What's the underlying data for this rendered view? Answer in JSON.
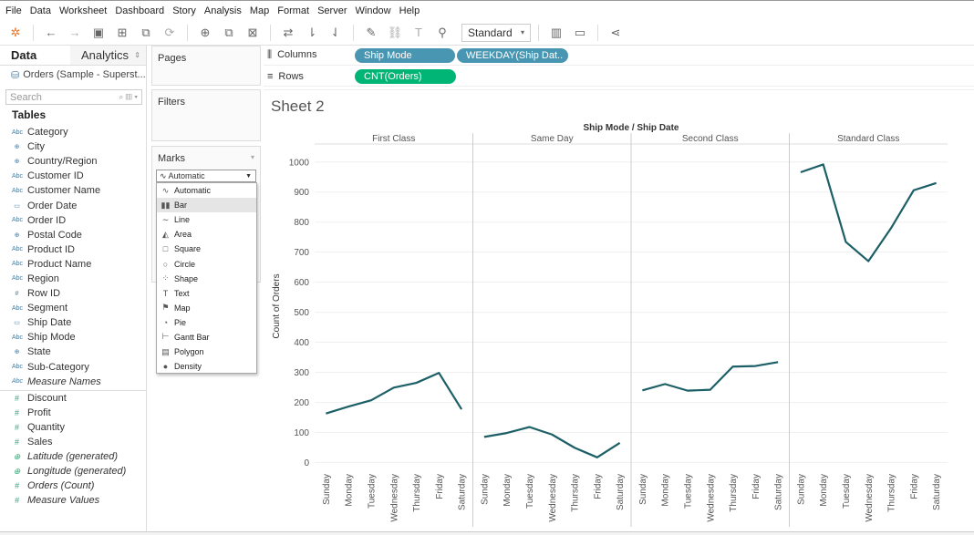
{
  "menu": [
    "File",
    "Data",
    "Worksheet",
    "Dashboard",
    "Story",
    "Analysis",
    "Map",
    "Format",
    "Server",
    "Window",
    "Help"
  ],
  "toolbar": {
    "fit": "Standard"
  },
  "left_pane": {
    "tab_data": "Data",
    "tab_analytics": "Analytics",
    "datasource": "Orders (Sample - Superst...",
    "search_placeholder": "Search",
    "tables_title": "Tables",
    "dimensions": [
      {
        "icon": "Abc",
        "name": "Category"
      },
      {
        "icon": "⊕",
        "name": "City"
      },
      {
        "icon": "⊕",
        "name": "Country/Region"
      },
      {
        "icon": "Abc",
        "name": "Customer ID"
      },
      {
        "icon": "Abc",
        "name": "Customer Name"
      },
      {
        "icon": "▭",
        "name": "Order Date"
      },
      {
        "icon": "Abc",
        "name": "Order ID"
      },
      {
        "icon": "⊕",
        "name": "Postal Code"
      },
      {
        "icon": "Abc",
        "name": "Product ID"
      },
      {
        "icon": "Abc",
        "name": "Product Name"
      },
      {
        "icon": "Abc",
        "name": "Region"
      },
      {
        "icon": "#",
        "name": "Row ID"
      },
      {
        "icon": "Abc",
        "name": "Segment"
      },
      {
        "icon": "▭",
        "name": "Ship Date"
      },
      {
        "icon": "Abc",
        "name": "Ship Mode"
      },
      {
        "icon": "⊕",
        "name": "State"
      },
      {
        "icon": "Abc",
        "name": "Sub-Category"
      },
      {
        "icon": "Abc",
        "name": "Measure Names",
        "italic": true
      }
    ],
    "measures": [
      {
        "icon": "#",
        "name": "Discount"
      },
      {
        "icon": "#",
        "name": "Profit"
      },
      {
        "icon": "#",
        "name": "Quantity"
      },
      {
        "icon": "#",
        "name": "Sales"
      },
      {
        "icon": "⊕",
        "name": "Latitude (generated)",
        "italic": true
      },
      {
        "icon": "⊕",
        "name": "Longitude (generated)",
        "italic": true
      },
      {
        "icon": "#",
        "name": "Orders (Count)",
        "italic": true
      },
      {
        "icon": "#",
        "name": "Measure Values",
        "italic": true
      }
    ]
  },
  "cards": {
    "pages": "Pages",
    "filters": "Filters",
    "marks": "Marks"
  },
  "marks_select": {
    "value": "Automatic"
  },
  "mark_types": [
    {
      "icon": "∿",
      "label": "Automatic"
    },
    {
      "icon": "▮▮",
      "label": "Bar",
      "selected": true
    },
    {
      "icon": "∼",
      "label": "Line"
    },
    {
      "icon": "◭",
      "label": "Area"
    },
    {
      "icon": "□",
      "label": "Square"
    },
    {
      "icon": "○",
      "label": "Circle"
    },
    {
      "icon": "⁘",
      "label": "Shape"
    },
    {
      "icon": "T",
      "label": "Text"
    },
    {
      "icon": "⚑",
      "label": "Map"
    },
    {
      "icon": "◔",
      "label": "Pie"
    },
    {
      "icon": "⊢",
      "label": "Gantt Bar"
    },
    {
      "icon": "▤",
      "label": "Polygon"
    },
    {
      "icon": "●",
      "label": "Density"
    }
  ],
  "shelves": {
    "columns_label": "Columns",
    "rows_label": "Rows",
    "columns_pills": [
      "Ship Mode",
      "WEEKDAY(Ship Dat.."
    ],
    "rows_pills": [
      "CNT(Orders)"
    ]
  },
  "sheet_title": "Sheet 2",
  "chart_data": {
    "type": "line",
    "title": "Ship Mode / Ship Date",
    "ylabel": "Count of Orders",
    "ylim": [
      -20,
      1060
    ],
    "yticks": [
      0,
      100,
      200,
      300,
      400,
      500,
      600,
      700,
      800,
      900,
      1000
    ],
    "line_color": "#1c5f66",
    "categories": [
      "Sunday",
      "Monday",
      "Tuesday",
      "Wednesday",
      "Thursday",
      "Friday",
      "Saturday"
    ],
    "panels": [
      {
        "name": "First Class",
        "values": [
          163,
          186,
          207,
          249,
          265,
          298,
          177
        ]
      },
      {
        "name": "Same Day",
        "values": [
          85,
          98,
          118,
          93,
          49,
          17,
          65
        ]
      },
      {
        "name": "Second Class",
        "values": [
          240,
          261,
          239,
          242,
          319,
          321,
          334
        ]
      },
      {
        "name": "Standard Class",
        "values": [
          966,
          992,
          734,
          670,
          780,
          906,
          930
        ]
      }
    ]
  }
}
